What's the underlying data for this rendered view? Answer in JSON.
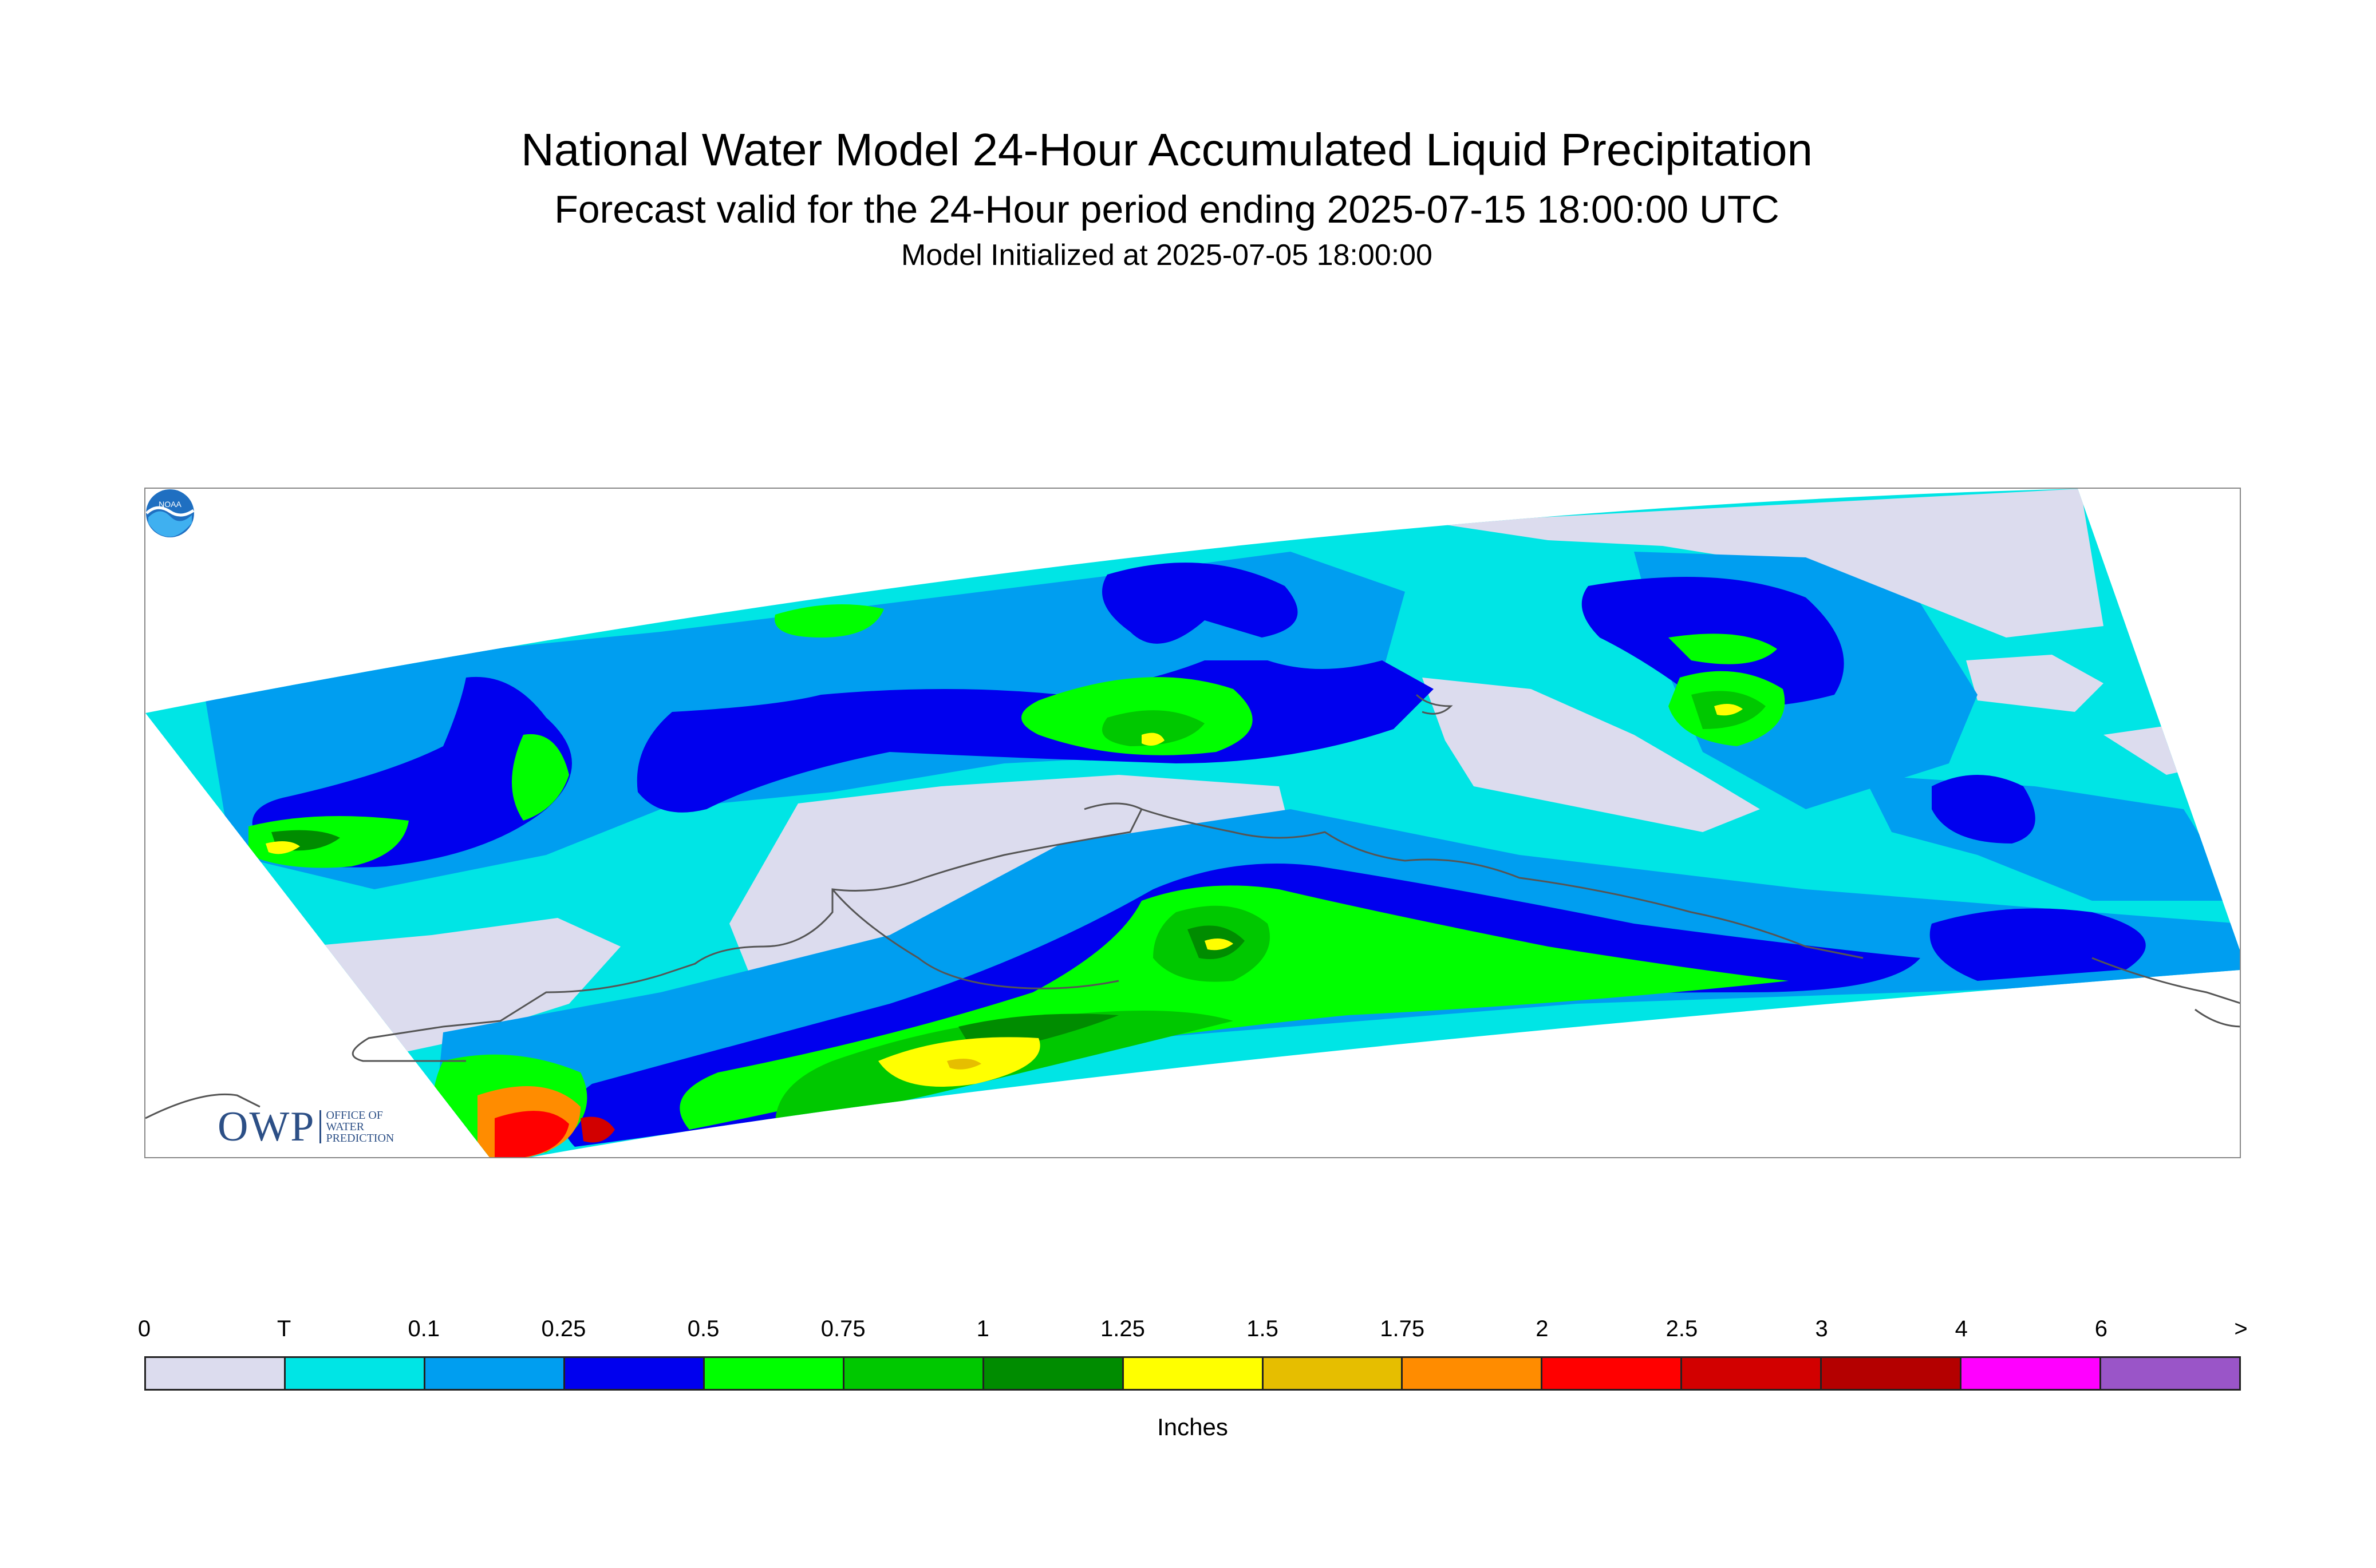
{
  "title": "National Water Model 24-Hour Accumulated Liquid Precipitation",
  "subtitle": "Forecast valid for the 24-Hour period ending 2025-07-15 18:00:00 UTC",
  "initialized": "Model Initialized at 2025-07-05 18:00:00",
  "logos": {
    "owp_letters": "OWP",
    "owp_text": [
      "OFFICE OF",
      "WATER",
      "PREDICTION"
    ],
    "noaa_text": "NOAA"
  },
  "legend": {
    "units": "Inches",
    "labels": [
      "0",
      "T",
      "0.1",
      "0.25",
      "0.5",
      "0.75",
      "1",
      "1.25",
      "1.5",
      "1.75",
      "2",
      "2.5",
      "3",
      "4",
      "6",
      ">"
    ],
    "colors": [
      "#dcdcee",
      "#00e5e5",
      "#009ef0",
      "#0000ee",
      "#00ff00",
      "#00c800",
      "#008c00",
      "#ffff00",
      "#e6be00",
      "#ff8c00",
      "#ff0000",
      "#d20000",
      "#b40000",
      "#ff00ff",
      "#9a55c8"
    ]
  }
}
